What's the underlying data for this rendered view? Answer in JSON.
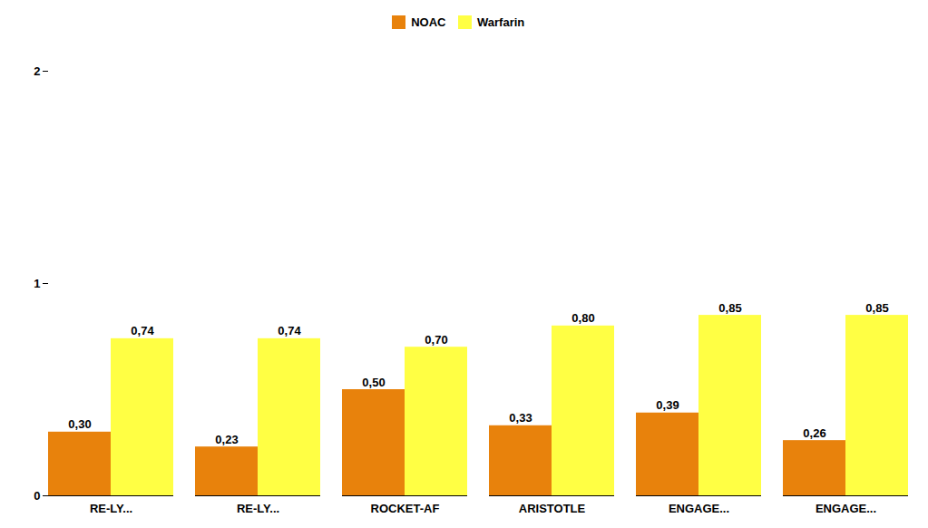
{
  "chart_data": {
    "type": "bar",
    "categories": [
      "RE-LY...",
      "RE-LY...",
      "ROCKET-AF",
      "ARISTOTLE",
      "ENGAGE...",
      "ENGAGE..."
    ],
    "series": [
      {
        "name": "NOAC",
        "color": "#E8820C",
        "values": [
          0.3,
          0.23,
          0.5,
          0.33,
          0.39,
          0.26
        ],
        "value_labels": [
          "0,30",
          "0,23",
          "0,50",
          "0,33",
          "0,39",
          "0,26"
        ]
      },
      {
        "name": "Warfarin",
        "color": "#FFFF44",
        "values": [
          0.74,
          0.74,
          0.7,
          0.8,
          0.85,
          0.85
        ],
        "value_labels": [
          "0,74",
          "0,74",
          "0,70",
          "0,80",
          "0,85",
          "0,85"
        ]
      }
    ],
    "ylim": [
      0,
      2
    ],
    "yticks": [
      0,
      1,
      2
    ],
    "data_labels": true,
    "grid": false,
    "legend": "top"
  }
}
